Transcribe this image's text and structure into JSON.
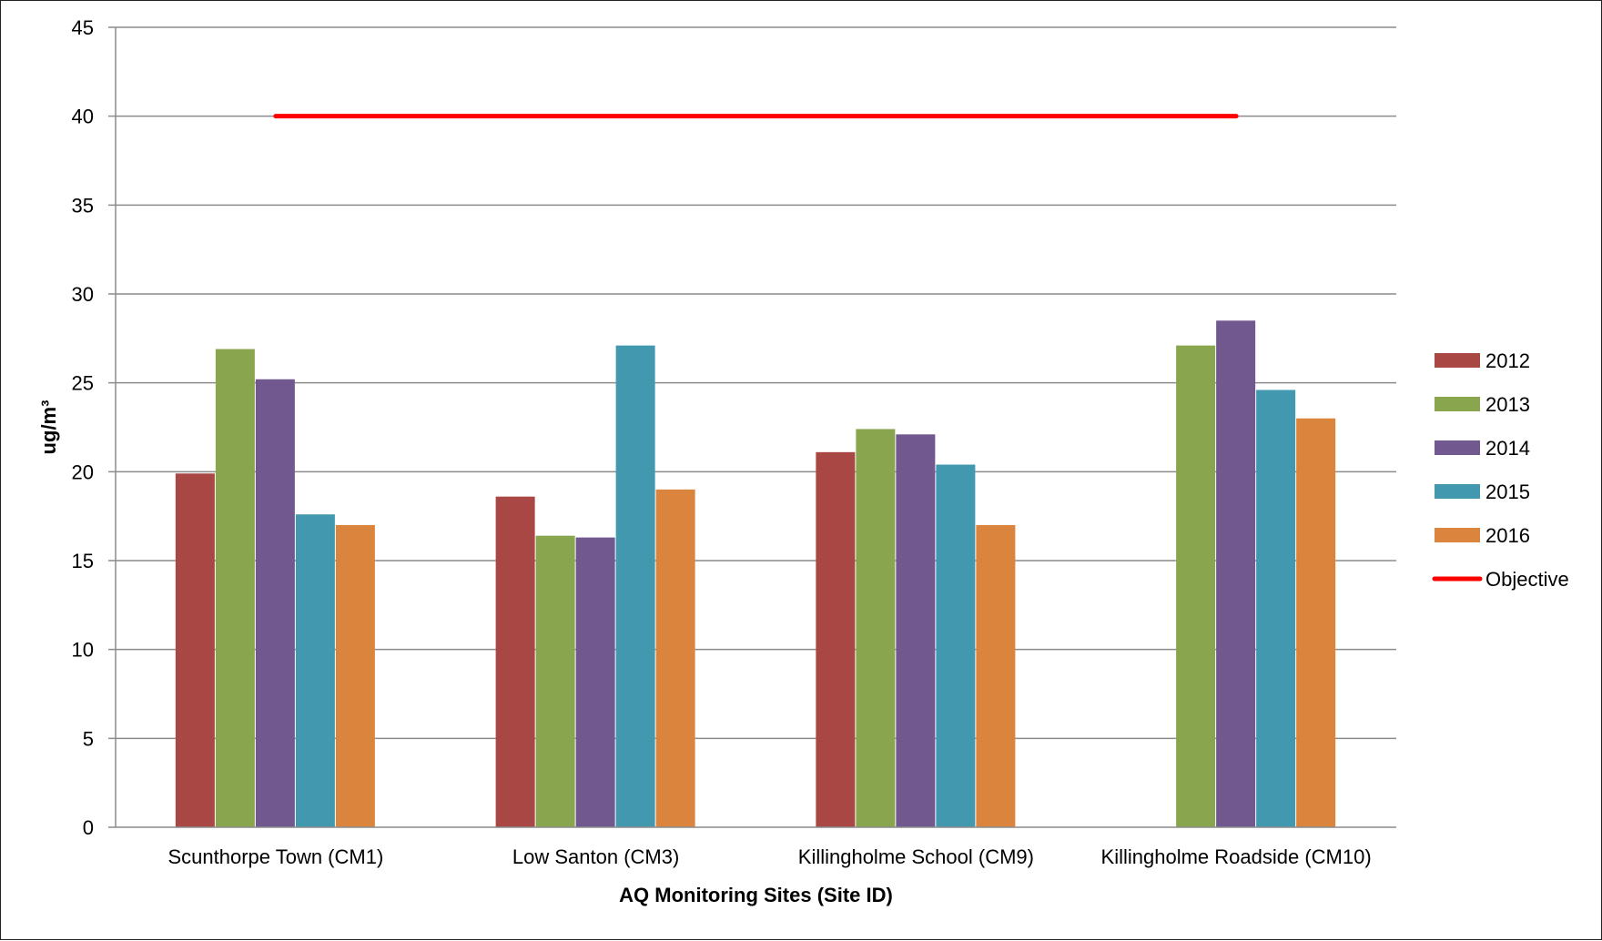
{
  "chart_data": {
    "type": "bar",
    "title": "",
    "xlabel": "AQ Monitoring Sites (Site ID)",
    "ylabel": "ug/m³",
    "ylim": [
      0,
      45
    ],
    "yticks": [
      0,
      5,
      10,
      15,
      20,
      25,
      30,
      35,
      40,
      45
    ],
    "grid": true,
    "legend_position": "right",
    "categories": [
      "Scunthorpe Town (CM1)",
      "Low Santon (CM3)",
      "Killingholme School (CM9)",
      "Killingholme Roadside (CM10)"
    ],
    "series": [
      {
        "name": "2012",
        "color": "#A84744",
        "values": [
          19.9,
          18.6,
          21.1,
          null
        ]
      },
      {
        "name": "2013",
        "color": "#89A54E",
        "values": [
          26.9,
          16.4,
          22.4,
          27.1
        ]
      },
      {
        "name": "2014",
        "color": "#71588F",
        "values": [
          25.2,
          16.3,
          22.1,
          28.5
        ]
      },
      {
        "name": "2015",
        "color": "#4198AF",
        "values": [
          17.6,
          27.1,
          20.4,
          24.6
        ]
      },
      {
        "name": "2016",
        "color": "#DB843D",
        "values": [
          17,
          19,
          17,
          23
        ]
      }
    ],
    "objective": {
      "name": "Objective",
      "value": 40,
      "color": "#FF0000",
      "type": "line"
    }
  }
}
